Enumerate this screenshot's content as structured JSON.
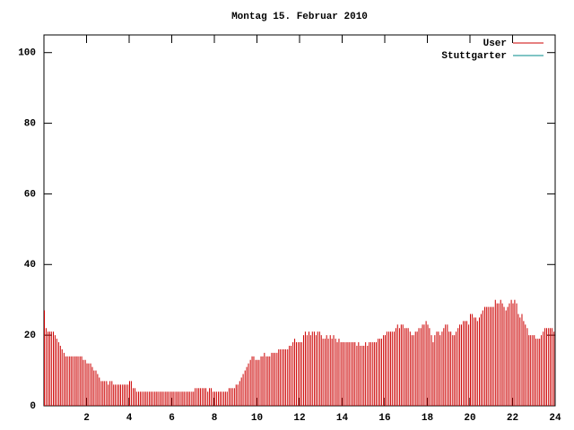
{
  "chart_data": {
    "type": "impulses",
    "title": "Montag 15. Februar 2010",
    "xlim": [
      0,
      24
    ],
    "xticks": [
      2,
      4,
      6,
      8,
      10,
      12,
      14,
      16,
      18,
      20,
      22,
      24
    ],
    "ylim": [
      0,
      105
    ],
    "yticks": [
      0,
      20,
      40,
      60,
      80,
      100
    ],
    "legend": "top-right",
    "x": [
      0,
      0.08,
      0.17,
      0.25,
      0.33,
      0.42,
      0.5,
      0.58,
      0.67,
      0.75,
      0.83,
      0.92,
      1,
      1.08,
      1.17,
      1.25,
      1.33,
      1.42,
      1.5,
      1.58,
      1.67,
      1.75,
      1.83,
      1.92,
      2,
      2.08,
      2.17,
      2.25,
      2.33,
      2.42,
      2.5,
      2.58,
      2.67,
      2.75,
      2.83,
      2.92,
      3,
      3.08,
      3.17,
      3.25,
      3.33,
      3.42,
      3.5,
      3.58,
      3.67,
      3.75,
      3.83,
      3.92,
      4,
      4.08,
      4.17,
      4.25,
      4.33,
      4.42,
      4.5,
      4.58,
      4.67,
      4.75,
      4.83,
      4.92,
      5,
      5.08,
      5.17,
      5.25,
      5.33,
      5.42,
      5.5,
      5.58,
      5.67,
      5.75,
      5.83,
      5.92,
      6,
      6.08,
      6.17,
      6.25,
      6.33,
      6.42,
      6.5,
      6.58,
      6.67,
      6.75,
      6.83,
      6.92,
      7,
      7.08,
      7.17,
      7.25,
      7.33,
      7.42,
      7.5,
      7.58,
      7.67,
      7.75,
      7.83,
      7.92,
      8,
      8.08,
      8.17,
      8.25,
      8.33,
      8.42,
      8.5,
      8.58,
      8.67,
      8.75,
      8.83,
      8.92,
      9,
      9.08,
      9.17,
      9.25,
      9.33,
      9.42,
      9.5,
      9.58,
      9.67,
      9.75,
      9.83,
      9.92,
      10,
      10.08,
      10.17,
      10.25,
      10.33,
      10.42,
      10.5,
      10.58,
      10.67,
      10.75,
      10.83,
      10.92,
      11,
      11.08,
      11.17,
      11.25,
      11.33,
      11.42,
      11.5,
      11.58,
      11.67,
      11.75,
      11.83,
      11.92,
      12,
      12.08,
      12.17,
      12.25,
      12.33,
      12.42,
      12.5,
      12.58,
      12.67,
      12.75,
      12.83,
      12.92,
      13,
      13.08,
      13.17,
      13.25,
      13.33,
      13.42,
      13.5,
      13.58,
      13.67,
      13.75,
      13.83,
      13.92,
      14,
      14.08,
      14.17,
      14.25,
      14.33,
      14.42,
      14.5,
      14.58,
      14.67,
      14.75,
      14.83,
      14.92,
      15,
      15.08,
      15.17,
      15.25,
      15.33,
      15.42,
      15.5,
      15.58,
      15.67,
      15.75,
      15.83,
      15.92,
      16,
      16.08,
      16.17,
      16.25,
      16.33,
      16.42,
      16.5,
      16.58,
      16.67,
      16.75,
      16.83,
      16.92,
      17,
      17.08,
      17.17,
      17.25,
      17.33,
      17.42,
      17.5,
      17.58,
      17.67,
      17.75,
      17.83,
      17.92,
      18,
      18.08,
      18.17,
      18.25,
      18.33,
      18.42,
      18.5,
      18.58,
      18.67,
      18.75,
      18.83,
      18.92,
      19,
      19.08,
      19.17,
      19.25,
      19.33,
      19.42,
      19.5,
      19.58,
      19.67,
      19.75,
      19.83,
      19.92,
      20,
      20.08,
      20.17,
      20.25,
      20.33,
      20.42,
      20.5,
      20.58,
      20.67,
      20.75,
      20.83,
      20.92,
      21,
      21.08,
      21.17,
      21.25,
      21.33,
      21.42,
      21.5,
      21.58,
      21.67,
      21.75,
      21.83,
      21.92,
      22,
      22.08,
      22.17,
      22.25,
      22.33,
      22.42,
      22.5,
      22.58,
      22.67,
      22.75,
      22.83,
      22.92,
      23,
      23.08,
      23.17,
      23.25,
      23.33,
      23.42,
      23.5,
      23.58,
      23.67,
      23.75,
      23.83,
      23.92
    ],
    "series": [
      {
        "name": "User",
        "color": "#cc0000",
        "values": [
          27,
          22,
          21,
          21,
          21,
          21,
          20,
          19,
          18,
          17,
          16,
          15,
          14,
          14,
          14,
          14,
          14,
          14,
          14,
          14,
          14,
          14,
          13,
          13,
          12,
          12,
          12,
          11,
          10,
          10,
          9,
          8,
          7,
          7,
          7,
          7,
          6,
          7,
          7,
          6,
          6,
          6,
          6,
          6,
          6,
          6,
          6,
          6,
          7,
          7,
          5,
          5,
          4,
          4,
          4,
          4,
          4,
          4,
          4,
          4,
          4,
          4,
          4,
          4,
          4,
          4,
          4,
          4,
          4,
          4,
          4,
          4,
          4,
          4,
          4,
          4,
          4,
          4,
          4,
          4,
          4,
          4,
          4,
          4,
          4,
          5,
          5,
          5,
          5,
          5,
          5,
          5,
          4,
          5,
          5,
          4,
          4,
          4,
          4,
          4,
          4,
          4,
          4,
          4,
          5,
          5,
          5,
          5,
          6,
          6,
          7,
          8,
          9,
          10,
          11,
          12,
          13,
          14,
          14,
          13,
          13,
          13,
          14,
          14,
          15,
          14,
          14,
          14,
          15,
          15,
          15,
          15,
          16,
          16,
          16,
          16,
          16,
          16,
          17,
          17,
          18,
          19,
          18,
          18,
          18,
          18,
          20,
          21,
          20,
          21,
          20,
          21,
          21,
          20,
          21,
          21,
          20,
          19,
          19,
          20,
          19,
          20,
          19,
          20,
          19,
          18,
          19,
          18,
          18,
          18,
          18,
          18,
          18,
          18,
          18,
          18,
          17,
          18,
          17,
          17,
          17,
          18,
          17,
          18,
          18,
          18,
          18,
          18,
          19,
          19,
          19,
          20,
          20,
          21,
          21,
          21,
          21,
          21,
          22,
          23,
          22,
          23,
          23,
          22,
          22,
          22,
          21,
          20,
          20,
          21,
          21,
          22,
          22,
          23,
          23,
          24,
          23,
          22,
          20,
          18,
          20,
          21,
          21,
          20,
          21,
          22,
          23,
          23,
          21,
          21,
          20,
          20,
          21,
          22,
          23,
          23,
          24,
          24,
          24,
          23,
          26,
          26,
          25,
          25,
          24,
          25,
          26,
          27,
          28,
          28,
          28,
          28,
          28,
          28,
          30,
          29,
          29,
          30,
          29,
          28,
          27,
          28,
          29,
          30,
          29,
          30,
          29,
          26,
          25,
          26,
          24,
          23,
          22,
          20,
          20,
          20,
          20,
          19,
          19,
          19,
          20,
          21,
          22,
          22,
          22,
          22,
          22,
          21
        ]
      },
      {
        "name": "Stuttgarter",
        "color": "#008b8b"
      }
    ]
  }
}
